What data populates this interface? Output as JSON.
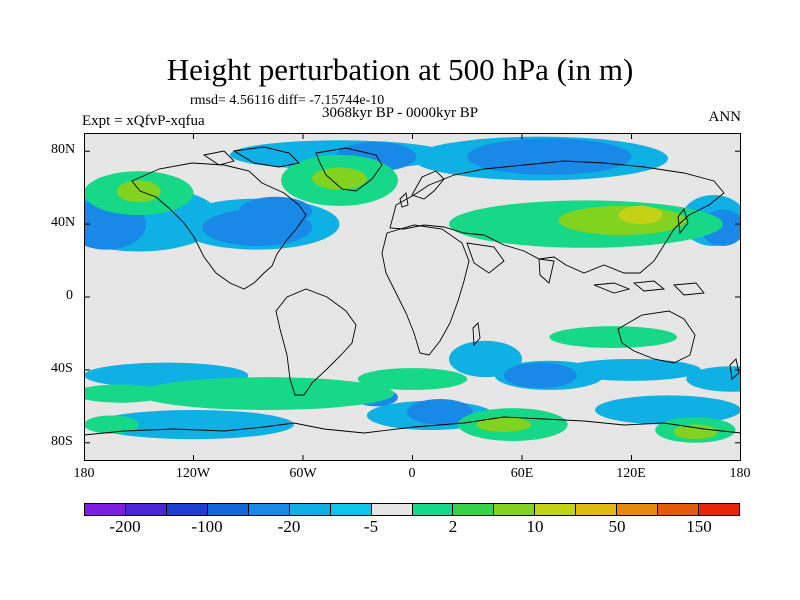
{
  "title": "Height perturbation at 500 hPa (in m)",
  "stats": "rmsd= 4.56116 diff= -7.15744e-10",
  "period": "3068kyr BP - 0000kyr BP",
  "experiment": "Expt = xQfvP-xqfua",
  "season": "ANN",
  "lat_labels": [
    "80N",
    "40N",
    "0",
    "40S",
    "80S"
  ],
  "lon_labels": [
    "180",
    "120W",
    "60W",
    "0",
    "60E",
    "120E",
    "180"
  ],
  "colorbar": {
    "colors": [
      "#7d1de0",
      "#4b26d6",
      "#1d3ed0",
      "#1466db",
      "#1889e6",
      "#0fb0e3",
      "#10c6e8",
      "#e6e6e6",
      "#17d887",
      "#35d24a",
      "#82d31f",
      "#c3d214",
      "#dfba12",
      "#e38a0d",
      "#e25a0a",
      "#e5260a"
    ],
    "labels": [
      "-200",
      "-100",
      "-20",
      "-5",
      "2",
      "10",
      "50",
      "150"
    ]
  },
  "fields": {
    "blue": [
      {
        "lon": -168,
        "lat": 40,
        "rx": 22,
        "ry": 14
      },
      {
        "lon": -85,
        "lat": 38,
        "rx": 30,
        "ry": 10
      },
      {
        "lon": 75,
        "lat": 77,
        "rx": 45,
        "ry": 10
      },
      {
        "lon": -20,
        "lat": 77,
        "rx": 22,
        "ry": 8
      },
      {
        "lon": 170,
        "lat": 38,
        "rx": 12,
        "ry": 10
      },
      {
        "lon": -75,
        "lat": 47,
        "rx": 20,
        "ry": 8
      },
      {
        "lon": 15,
        "lat": -63,
        "rx": 18,
        "ry": 7
      },
      {
        "lon": 70,
        "lat": -43,
        "rx": 20,
        "ry": 7
      },
      {
        "lon": -20,
        "lat": -55,
        "rx": 12,
        "ry": 5
      }
    ],
    "cyan": [
      {
        "lon": -150,
        "lat": 43,
        "rx": 45,
        "ry": 18
      },
      {
        "lon": -85,
        "lat": 40,
        "rx": 45,
        "ry": 14
      },
      {
        "lon": 70,
        "lat": 76,
        "rx": 70,
        "ry": 12
      },
      {
        "lon": -40,
        "lat": 78,
        "rx": 60,
        "ry": 8
      },
      {
        "lon": -135,
        "lat": -43,
        "rx": 45,
        "ry": 7
      },
      {
        "lon": 40,
        "lat": -34,
        "rx": 20,
        "ry": 10
      },
      {
        "lon": 75,
        "lat": -43,
        "rx": 30,
        "ry": 8
      },
      {
        "lon": 120,
        "lat": -40,
        "rx": 38,
        "ry": 6
      },
      {
        "lon": 175,
        "lat": -45,
        "rx": 25,
        "ry": 7
      },
      {
        "lon": -120,
        "lat": -70,
        "rx": 55,
        "ry": 8
      },
      {
        "lon": 10,
        "lat": -65,
        "rx": 35,
        "ry": 8
      },
      {
        "lon": 140,
        "lat": -62,
        "rx": 40,
        "ry": 8
      },
      {
        "lon": 165,
        "lat": 42,
        "rx": 18,
        "ry": 14
      }
    ],
    "green": [
      {
        "lon": -150,
        "lat": 57,
        "rx": 30,
        "ry": 12
      },
      {
        "lon": -40,
        "lat": 64,
        "rx": 32,
        "ry": 14
      },
      {
        "lon": 95,
        "lat": 40,
        "rx": 75,
        "ry": 13
      },
      {
        "lon": -80,
        "lat": -53,
        "rx": 70,
        "ry": 9
      },
      {
        "lon": 0,
        "lat": -45,
        "rx": 30,
        "ry": 6
      },
      {
        "lon": 110,
        "lat": -22,
        "rx": 35,
        "ry": 6
      },
      {
        "lon": -160,
        "lat": -53,
        "rx": 25,
        "ry": 5
      },
      {
        "lon": 55,
        "lat": -70,
        "rx": 30,
        "ry": 9
      },
      {
        "lon": 155,
        "lat": -73,
        "rx": 22,
        "ry": 7
      },
      {
        "lon": -165,
        "lat": -70,
        "rx": 15,
        "ry": 5
      }
    ],
    "lime": [
      {
        "lon": -150,
        "lat": 58,
        "rx": 12,
        "ry": 6
      },
      {
        "lon": -40,
        "lat": 65,
        "rx": 15,
        "ry": 6
      },
      {
        "lon": 115,
        "lat": 42,
        "rx": 35,
        "ry": 8
      },
      {
        "lon": 50,
        "lat": -70,
        "rx": 15,
        "ry": 4
      },
      {
        "lon": 155,
        "lat": -74,
        "rx": 12,
        "ry": 4
      }
    ],
    "yellow": [
      {
        "lon": 125,
        "lat": 45,
        "rx": 12,
        "ry": 5
      }
    ]
  }
}
